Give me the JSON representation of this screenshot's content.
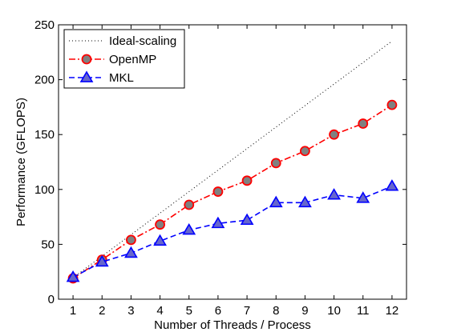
{
  "chart_data": {
    "type": "line",
    "xlabel": "Number of Threads / Process",
    "ylabel": "Performance (GFLOPS)",
    "xlim": [
      0.5,
      12.5
    ],
    "ylim": [
      0,
      250
    ],
    "x_ticks": [
      1,
      2,
      3,
      4,
      5,
      6,
      7,
      8,
      9,
      10,
      11,
      12
    ],
    "y_ticks": [
      0,
      50,
      100,
      150,
      200,
      250
    ],
    "grid": false,
    "legend_position": "top-left",
    "x": [
      1,
      2,
      3,
      4,
      5,
      6,
      7,
      8,
      9,
      10,
      11,
      12
    ],
    "series": [
      {
        "name": "Ideal-scaling",
        "style": "dotted",
        "color": "#000000",
        "marker": "none",
        "values": [
          19.6,
          39.2,
          58.8,
          78.4,
          98.0,
          117.6,
          137.2,
          156.8,
          176.4,
          196.0,
          215.6,
          235.2
        ]
      },
      {
        "name": "OpenMP",
        "style": "dashdot",
        "color": "#ff0000",
        "marker": "circle",
        "marker_fill": "#808080",
        "values": [
          19,
          36,
          54,
          68,
          86,
          98,
          108,
          124,
          135,
          150,
          160,
          177
        ]
      },
      {
        "name": "MKL",
        "style": "dashed",
        "color": "#0000ff",
        "marker": "triangle",
        "marker_fill": "#6666cc",
        "values": [
          20,
          34,
          42,
          53,
          63,
          69,
          72,
          88,
          88,
          95,
          92,
          103
        ]
      }
    ]
  }
}
